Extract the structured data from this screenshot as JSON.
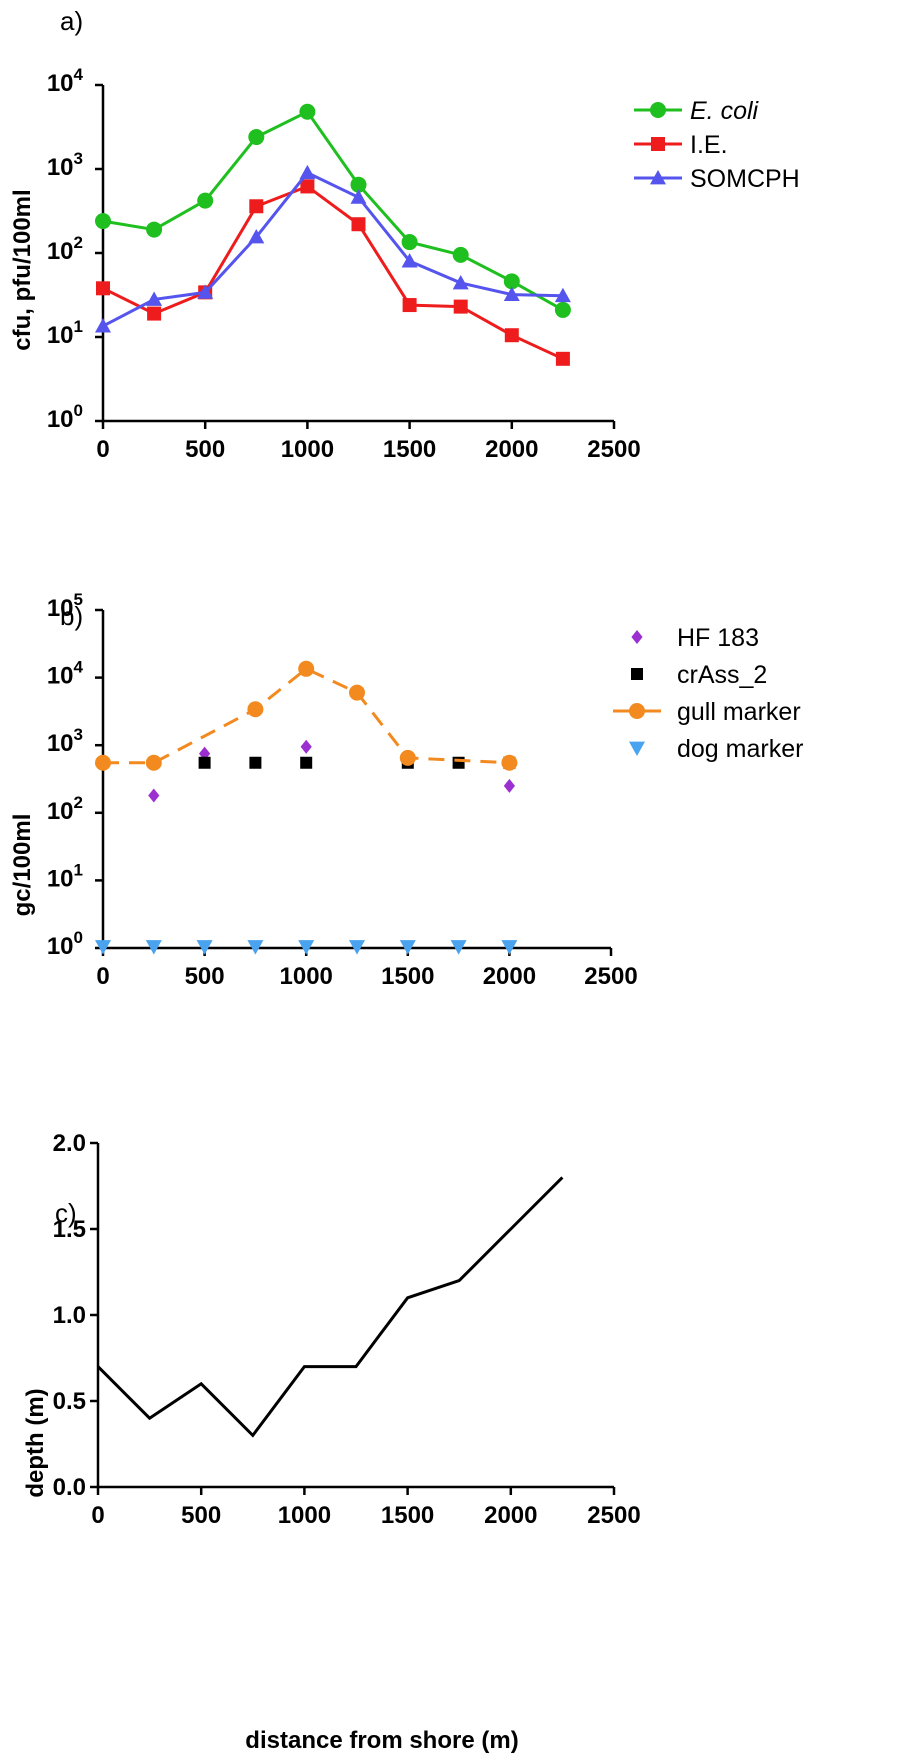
{
  "chart_data": [
    {
      "panel_label": "a)",
      "type": "line",
      "yscale": "log",
      "xlim": [
        0,
        2500
      ],
      "ylim_exponent": [
        0,
        4
      ],
      "xticks": [
        "0",
        "500",
        "1000",
        "1500",
        "2000",
        "2500"
      ],
      "ylabel": "cfu, pfu/100ml",
      "legend_placement": "top-right",
      "series": [
        {
          "name": "E. coli",
          "italic": true,
          "color": "#1fbf1f",
          "marker": "circle",
          "line": "solid",
          "x": [
            0,
            250,
            500,
            750,
            1000,
            1250,
            1500,
            1750,
            2000,
            2250
          ],
          "y": [
            240,
            190,
            420,
            2400,
            4800,
            650,
            135,
            95,
            46,
            21
          ]
        },
        {
          "name": "I.E.",
          "italic": false,
          "color": "#ee1c1c",
          "marker": "square",
          "line": "solid",
          "x": [
            0,
            250,
            500,
            750,
            1000,
            1250,
            1500,
            1750,
            2000,
            2250
          ],
          "y": [
            38,
            19,
            34,
            360,
            620,
            220,
            24,
            23,
            10.5,
            5.5
          ]
        },
        {
          "name": "SOMCPH",
          "italic": false,
          "color": "#5555ee",
          "marker": "triangle-up",
          "line": "solid",
          "x": [
            0,
            250,
            500,
            750,
            1000,
            1250,
            1500,
            1750,
            2000,
            2250
          ],
          "y": [
            13.5,
            28,
            34,
            155,
            900,
            460,
            80,
            44,
            32,
            31
          ]
        }
      ]
    },
    {
      "panel_label": "b)",
      "type": "scatter",
      "yscale": "log",
      "xlim": [
        0,
        2500
      ],
      "ylim_exponent": [
        0,
        5
      ],
      "xticks": [
        "0",
        "500",
        "1000",
        "1500",
        "2000",
        "2500"
      ],
      "ylabel": "gc/100ml",
      "legend_placement": "top-right",
      "series": [
        {
          "name": "HF 183",
          "color": "#9b2fd0",
          "marker": "diamond",
          "line": "none",
          "x": [
            250,
            500,
            1000,
            2000
          ],
          "y": [
            180,
            750,
            950,
            250
          ]
        },
        {
          "name": "crAss_2",
          "color": "#000000",
          "marker": "square",
          "line": "none",
          "x": [
            500,
            750,
            1000,
            1500,
            1750,
            2000
          ],
          "y": [
            550,
            550,
            550,
            550,
            550,
            550
          ]
        },
        {
          "name": "gull marker",
          "color": "#f28a20",
          "marker": "circle",
          "line": "dashed",
          "x": [
            0,
            250,
            750,
            1000,
            1250,
            1500,
            2000
          ],
          "y": [
            550,
            550,
            3400,
            13500,
            6000,
            650,
            550
          ]
        },
        {
          "name": "dog marker",
          "color": "#4aa3ee",
          "marker": "triangle-down",
          "line": "none",
          "x": [
            0,
            250,
            500,
            750,
            1000,
            1250,
            1500,
            1750,
            2000
          ],
          "y": [
            1.05,
            1.05,
            1.05,
            1.05,
            1.05,
            1.05,
            1.05,
            1.05,
            1.05
          ]
        }
      ]
    },
    {
      "panel_label": "c)",
      "type": "line",
      "yscale": "linear",
      "xlim": [
        0,
        2500
      ],
      "ylim": [
        0,
        2
      ],
      "xticks": [
        "0",
        "500",
        "1000",
        "1500",
        "2000",
        "2500"
      ],
      "yticks": [
        "0.0",
        "0.5",
        "1.0",
        "1.5",
        "2.0"
      ],
      "ylabel": "depth (m)",
      "xlabel": "distance from shore (m)",
      "series": [
        {
          "name": "",
          "color": "#000000",
          "marker": "none",
          "line": "solid",
          "x": [
            0,
            250,
            500,
            750,
            1000,
            1250,
            1500,
            1750,
            2000,
            2250
          ],
          "y": [
            0.7,
            0.4,
            0.6,
            0.3,
            0.7,
            0.7,
            1.1,
            1.2,
            1.5,
            1.8
          ]
        }
      ]
    }
  ]
}
